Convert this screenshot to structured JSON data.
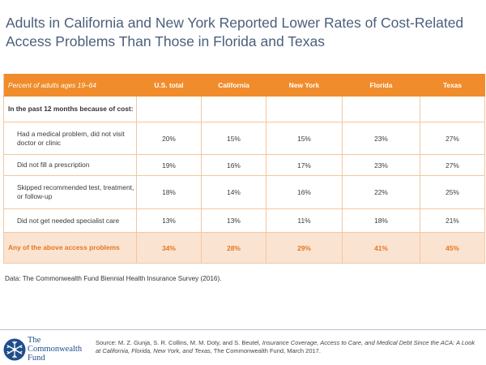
{
  "title_line1": "Adults in California and New York Reported Lower Rates of Cost-Related",
  "title_line2": "Access Problems Than Those in Florida and Texas",
  "chart_data": {
    "type": "table",
    "header_label": "Percent of adults ages 19–64",
    "columns": [
      "U.S. total",
      "California",
      "New York",
      "Florida",
      "Texas"
    ],
    "section_label": "In the past 12 months because of cost:",
    "rows": [
      {
        "label": "Had a medical problem, did not visit doctor or clinic",
        "values": [
          "20%",
          "15%",
          "15%",
          "23%",
          "27%"
        ]
      },
      {
        "label": "Did not fill a prescription",
        "values": [
          "19%",
          "16%",
          "17%",
          "23%",
          "27%"
        ]
      },
      {
        "label": "Skipped recommended test, treatment, or follow-up",
        "values": [
          "18%",
          "14%",
          "16%",
          "22%",
          "25%"
        ]
      },
      {
        "label": "Did not get needed specialist care",
        "values": [
          "13%",
          "13%",
          "11%",
          "18%",
          "21%"
        ]
      }
    ],
    "total_row": {
      "label": "Any of the above access problems",
      "values": [
        "34%",
        "28%",
        "29%",
        "41%",
        "45%"
      ]
    }
  },
  "data_note": "Data: The Commonwealth Fund Biennial Health Insurance Survey (2016).",
  "logo": {
    "line1": "The",
    "line2": "Commonwealth",
    "line3": "Fund",
    "icon": "snowflake-seal-icon"
  },
  "source": {
    "prefix": "Source: M. Z. Gunja, S. R. Collins, M. M. Doty, and S. Beutel, ",
    "title": "Insurance Coverage, Access to Care, and Medical Debt Since the ACA: A Look at California, Florida, New York, and Texas",
    "suffix": ", The Commonwealth Fund, March 2017."
  },
  "colors": {
    "accent": "#f08c2b",
    "total_bg": "#fbe3d2",
    "total_text": "#e5771d",
    "title": "#4a5f7a",
    "logo": "#1f4e8c"
  }
}
